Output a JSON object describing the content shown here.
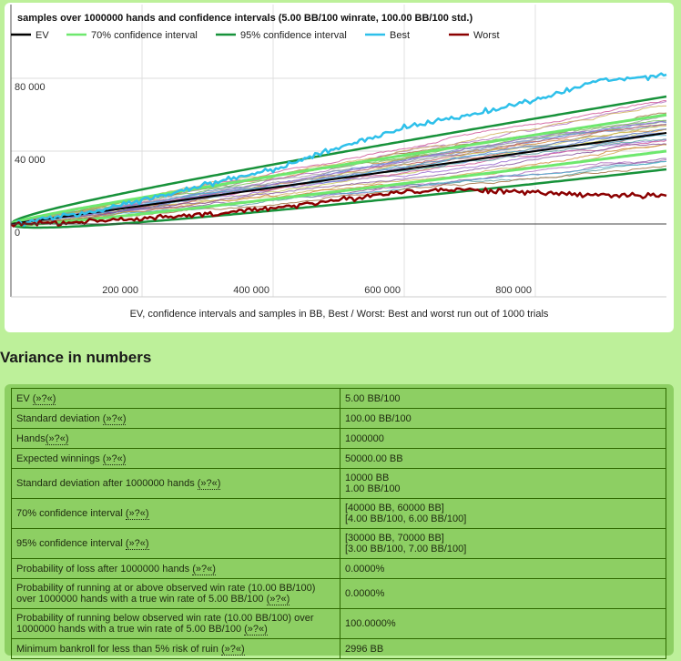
{
  "chart_data": {
    "type": "line",
    "title": "samples over 1000000 hands and confidence intervals (5.00 BB/100 winrate, 100.00 BB/100 std.)",
    "caption": "EV, confidence intervals and samples in BB, Best / Worst: Best and worst run out of 1000 trials",
    "xlabel": "",
    "ylabel": "",
    "xlim": [
      0,
      1000000
    ],
    "ylim": [
      -20000,
      100000
    ],
    "grid": true,
    "legend_position": "top-left",
    "x_ticks": [
      {
        "value": 200000,
        "label": "200 000"
      },
      {
        "value": 400000,
        "label": "400 000"
      },
      {
        "value": 600000,
        "label": "600 000"
      },
      {
        "value": 800000,
        "label": "800 000"
      }
    ],
    "y_ticks": [
      {
        "value": 0,
        "label": "0"
      },
      {
        "value": 40000,
        "label": "40 000"
      },
      {
        "value": 80000,
        "label": "80 000"
      }
    ],
    "legend": [
      {
        "name": "EV",
        "color": "#000000"
      },
      {
        "name": "70% confidence interval",
        "color": "#6ee86e"
      },
      {
        "name": "95% confidence interval",
        "color": "#17923a"
      },
      {
        "name": "Best",
        "color": "#2ec0ea"
      },
      {
        "name": "Worst",
        "color": "#8b0000"
      }
    ],
    "series": [
      {
        "name": "EV",
        "x": [
          0,
          250000,
          500000,
          750000,
          1000000
        ],
        "values": [
          0,
          12500,
          25000,
          37500,
          50000
        ]
      },
      {
        "name": "70% upper",
        "x": [
          0,
          250000,
          500000,
          750000,
          1000000
        ],
        "values": [
          0,
          17500,
          32071,
          46160,
          60000
        ]
      },
      {
        "name": "70% lower",
        "x": [
          0,
          250000,
          500000,
          750000,
          1000000
        ],
        "values": [
          0,
          7500,
          17929,
          28840,
          40000
        ]
      },
      {
        "name": "95% upper",
        "x": [
          0,
          250000,
          500000,
          750000,
          1000000
        ],
        "values": [
          0,
          22500,
          39142,
          54821,
          70000
        ]
      },
      {
        "name": "95% lower",
        "x": [
          0,
          250000,
          500000,
          750000,
          1000000
        ],
        "values": [
          0,
          2500,
          10858,
          20179,
          30000
        ]
      },
      {
        "name": "Best",
        "x": [
          0,
          100000,
          200000,
          300000,
          400000,
          500000,
          600000,
          700000,
          800000,
          900000,
          1000000
        ],
        "values": [
          0,
          5000,
          13000,
          22000,
          30000,
          42000,
          53000,
          60000,
          68000,
          79000,
          82000
        ]
      },
      {
        "name": "Worst",
        "x": [
          0,
          100000,
          200000,
          300000,
          400000,
          500000,
          600000,
          700000,
          800000,
          900000,
          1000000
        ],
        "values": [
          0,
          1000,
          3000,
          5000,
          9000,
          13000,
          18000,
          19000,
          17000,
          16000,
          15500
        ]
      }
    ],
    "sample_trials_shown": 30,
    "trials": 1000
  },
  "section": {
    "heading": "Variance in numbers"
  },
  "help_link": "(»?«)",
  "table": {
    "rows": [
      {
        "label": "EV",
        "values": [
          "5.00 BB/100"
        ]
      },
      {
        "label": "Standard deviation",
        "values": [
          "100.00 BB/100"
        ]
      },
      {
        "label": "Hands",
        "values": [
          "1000000"
        ]
      },
      {
        "label": "Expected winnings",
        "values": [
          "50000.00 BB"
        ]
      },
      {
        "label": "Standard deviation after 1000000 hands",
        "values": [
          "10000 BB",
          "1.00 BB/100"
        ]
      },
      {
        "label": "70% confidence interval",
        "values": [
          "[40000 BB, 60000 BB]",
          "[4.00 BB/100, 6.00 BB/100]"
        ]
      },
      {
        "label": "95% confidence interval",
        "values": [
          "[30000 BB, 70000 BB]",
          "[3.00 BB/100, 7.00 BB/100]"
        ]
      },
      {
        "label": "Probability of loss after 1000000 hands",
        "values": [
          "0.0000%"
        ]
      },
      {
        "label": "Probability of running at or above observed win rate (10.00 BB/100) over 1000000 hands with a true win rate of 5.00 BB/100",
        "values": [
          "0.0000%"
        ]
      },
      {
        "label": "Probability of running below observed win rate (10.00 BB/100) over 1000000 hands with a true win rate of 5.00 BB/100",
        "values": [
          "100.0000%"
        ]
      },
      {
        "label": "Minimum bankroll for less than 5% risk of ruin",
        "values": [
          "2996 BB"
        ]
      }
    ]
  }
}
